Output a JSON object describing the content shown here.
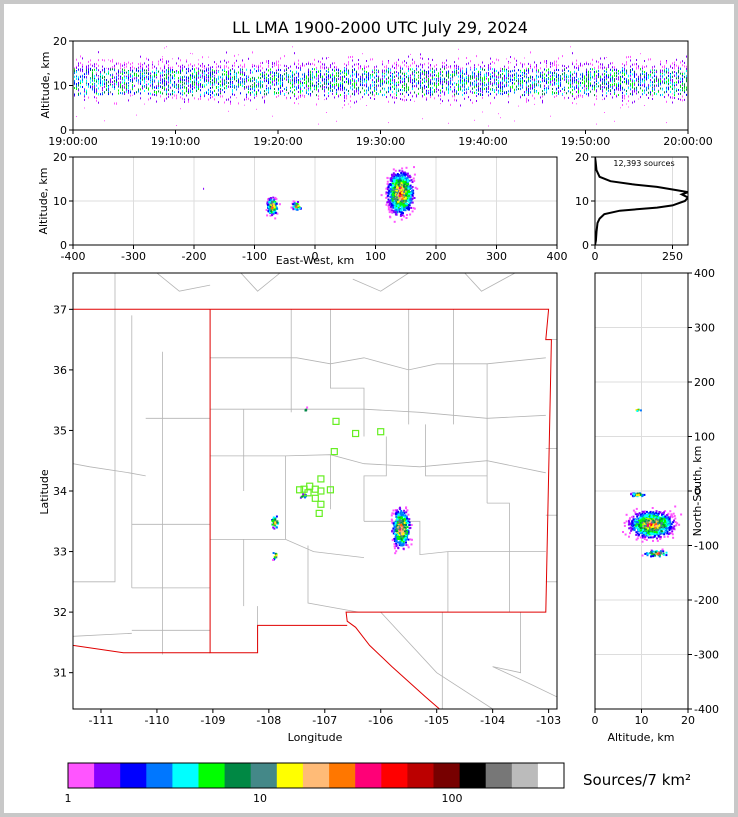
{
  "title": "LL LMA 1900-2000 UTC July 29, 2024",
  "colors": {
    "background": "#c8c8c8",
    "panel": "#ffffff",
    "state_border": "#e00000",
    "county_line": "#b4b4b4",
    "station_marker": "#66ee22",
    "grid": "#dddddd"
  },
  "colorbar": {
    "label": "Sources/7 km²",
    "ticks": [
      "1",
      "10",
      "100"
    ],
    "colors": [
      "#ff55ff",
      "#8800ff",
      "#0000ff",
      "#0077ff",
      "#00ffff",
      "#00ff00",
      "#008844",
      "#448888",
      "#ffff00",
      "#ffbb77",
      "#ff7700",
      "#ff0077",
      "#ff0000",
      "#bb0000",
      "#770000",
      "#000000",
      "#777777",
      "#bbbbbb",
      "#ffffff"
    ]
  },
  "chart_data": [
    {
      "id": "time-height",
      "type": "scatter",
      "ylabel": "Altitude, km",
      "xlabel": "",
      "x_ticks": [
        "19:00:00",
        "19:10:00",
        "19:20:00",
        "19:30:00",
        "19:40:00",
        "19:50:00",
        "20:00:00"
      ],
      "x_range_minutes": [
        0,
        60
      ],
      "ylim": [
        0,
        20
      ],
      "y_ticks": [
        0,
        10,
        20
      ],
      "main_band_km": [
        8,
        14
      ]
    },
    {
      "id": "ew-height",
      "type": "scatter",
      "xlabel": "East-West, km",
      "ylabel": "Altitude, km",
      "xlim": [
        -400,
        400
      ],
      "x_ticks": [
        -400,
        -300,
        -200,
        -100,
        0,
        100,
        200,
        300,
        400
      ],
      "ylim": [
        0,
        20
      ],
      "y_ticks": [
        0,
        10,
        20
      ],
      "clusters": [
        {
          "x": -70,
          "z": 9
        },
        {
          "x": -30,
          "z": 9
        },
        {
          "x": 140,
          "z": 12
        }
      ]
    },
    {
      "id": "altitude-histogram",
      "type": "line",
      "annotation": "12,393 sources",
      "xlim": [
        0,
        300
      ],
      "x_ticks": [
        0,
        250
      ],
      "ylim": [
        0,
        20
      ],
      "y_ticks": [
        0,
        10,
        20
      ],
      "profile": [
        [
          0,
          0
        ],
        [
          3,
          1
        ],
        [
          5,
          3
        ],
        [
          8,
          5
        ],
        [
          15,
          6
        ],
        [
          30,
          7
        ],
        [
          80,
          7.8
        ],
        [
          200,
          8.5
        ],
        [
          250,
          9
        ],
        [
          290,
          10
        ],
        [
          300,
          10.8
        ],
        [
          280,
          11.5
        ],
        [
          300,
          12
        ],
        [
          260,
          12.5
        ],
        [
          200,
          13.2
        ],
        [
          120,
          13.8
        ],
        [
          50,
          14.5
        ],
        [
          15,
          15.5
        ],
        [
          5,
          17
        ],
        [
          2,
          19
        ],
        [
          0,
          20
        ]
      ]
    },
    {
      "id": "plan-view",
      "type": "scatter",
      "xlabel": "Longitude",
      "ylabel": "Latitude",
      "xlim": [
        -111.5,
        -102.85
      ],
      "ylim": [
        30.4,
        37.6
      ],
      "x_ticks": [
        -111,
        -110,
        -109,
        -108,
        -107,
        -106,
        -105,
        -104,
        -103
      ],
      "y_ticks": [
        31,
        32,
        33,
        34,
        35,
        36,
        37
      ],
      "clusters": [
        {
          "lon": -105.65,
          "lat": 33.4
        },
        {
          "lon": -107.9,
          "lat": 33.5
        },
        {
          "lon": -107.4,
          "lat": 33.93
        },
        {
          "lon": -107.9,
          "lat": 32.95
        },
        {
          "lon": -107.35,
          "lat": 35.35
        }
      ],
      "stations": [
        {
          "lon": -106.8,
          "lat": 35.15
        },
        {
          "lon": -106.45,
          "lat": 34.95
        },
        {
          "lon": -106.0,
          "lat": 34.98
        },
        {
          "lon": -106.83,
          "lat": 34.65
        },
        {
          "lon": -107.07,
          "lat": 34.2
        },
        {
          "lon": -107.27,
          "lat": 34.08
        },
        {
          "lon": -107.37,
          "lat": 34.03
        },
        {
          "lon": -107.17,
          "lat": 34.03
        },
        {
          "lon": -107.07,
          "lat": 34.0
        },
        {
          "lon": -107.3,
          "lat": 33.97
        },
        {
          "lon": -107.17,
          "lat": 33.88
        },
        {
          "lon": -107.07,
          "lat": 33.78
        },
        {
          "lon": -107.1,
          "lat": 33.63
        },
        {
          "lon": -106.9,
          "lat": 34.02
        },
        {
          "lon": -107.45,
          "lat": 34.02
        }
      ]
    },
    {
      "id": "ns-height",
      "type": "scatter",
      "xlabel": "Altitude, km",
      "ylabel": "North-South, km",
      "xlim": [
        0,
        20
      ],
      "x_ticks": [
        0,
        10,
        20
      ],
      "ylim": [
        -400,
        400
      ],
      "y_ticks": [
        -400,
        -300,
        -200,
        -100,
        0,
        100,
        200,
        300,
        400
      ],
      "clusters": [
        {
          "z": 12,
          "y": -60
        },
        {
          "z": 9,
          "y": -5
        },
        {
          "z": 13,
          "y": -113
        },
        {
          "z": 9,
          "y": 150
        }
      ]
    }
  ]
}
